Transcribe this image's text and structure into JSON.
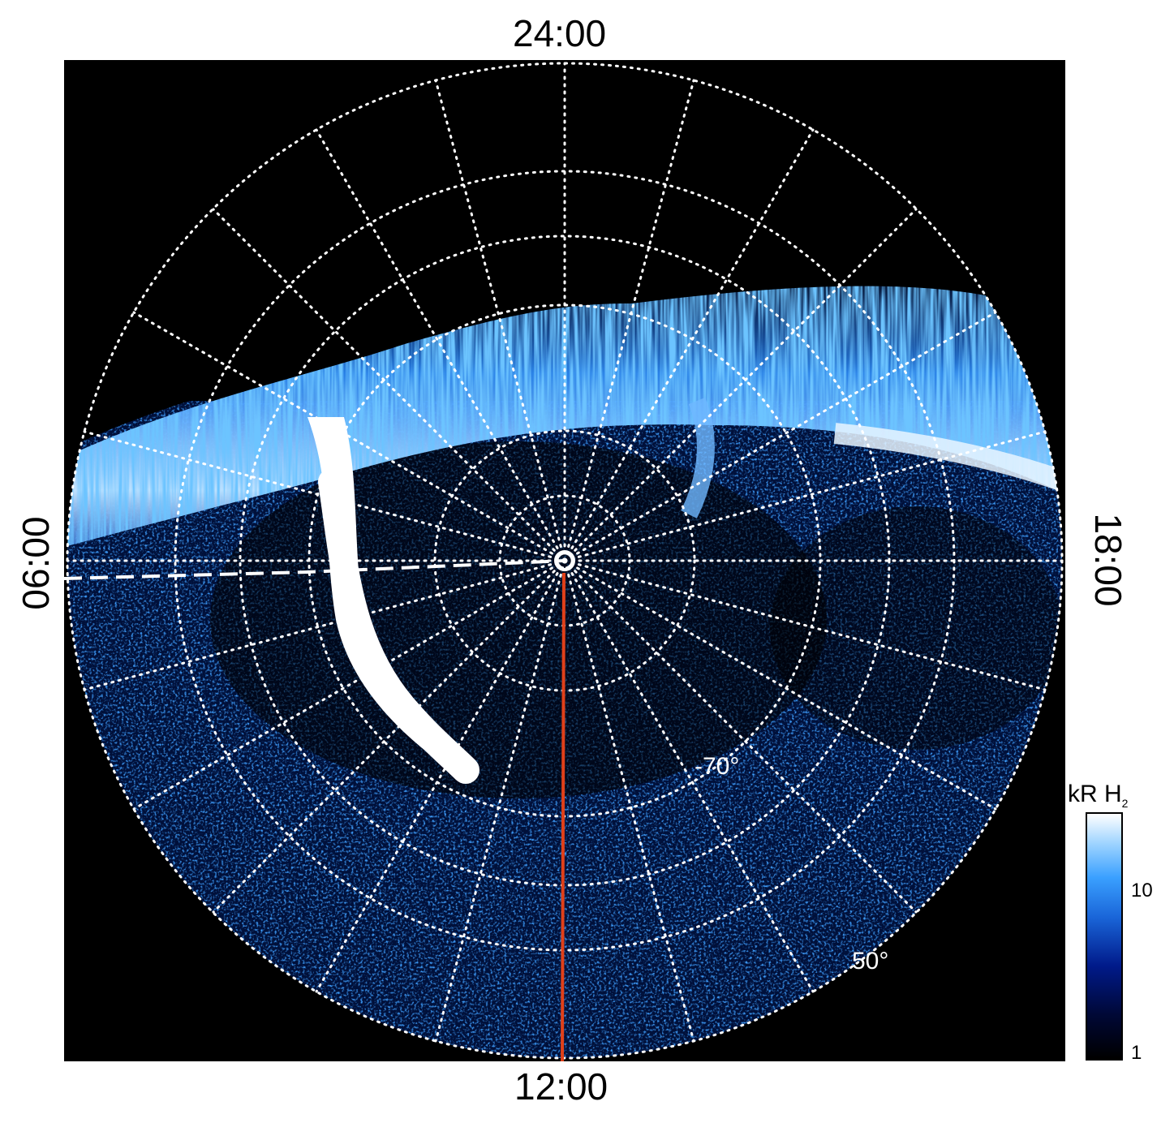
{
  "local_time_labels": {
    "top": "24:00",
    "bottom": "12:00",
    "left": "06:00",
    "right": "18:00"
  },
  "latitude_labels": {
    "inner": "-70°",
    "outer": "50°"
  },
  "colorbar": {
    "title": "kR H",
    "title_sub": "2",
    "ticks": [
      "10",
      "1"
    ],
    "scale": "log",
    "range": [
      1,
      20
    ],
    "colors": [
      "#000000",
      "#001a8a",
      "#1a66d9",
      "#3aa0ff",
      "#ffffff"
    ]
  },
  "colors": {
    "background": "#000000",
    "grid": "#ffffff",
    "meridian_line": "#e0401a"
  }
}
